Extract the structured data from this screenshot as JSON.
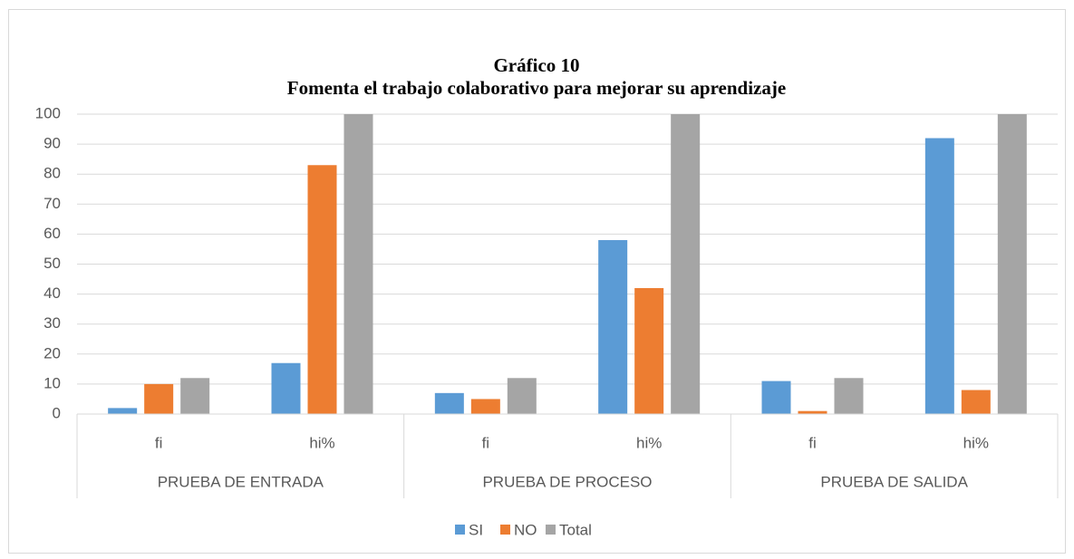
{
  "chart_data": {
    "type": "bar",
    "title": "Gráfico 10",
    "subtitle": "Fomenta el trabajo colaborativo para mejorar su aprendizaje",
    "groups": [
      "PRUEBA DE ENTRADA",
      "PRUEBA DE PROCESO",
      "PRUEBA DE SALIDA"
    ],
    "categories": [
      "fi",
      "hi%",
      "fi",
      "hi%",
      "fi",
      "hi%"
    ],
    "series": [
      {
        "name": "SI",
        "color": "#5b9bd5",
        "values": [
          2,
          17,
          7,
          58,
          11,
          92
        ]
      },
      {
        "name": "NO",
        "color": "#ed7d31",
        "values": [
          10,
          83,
          5,
          42,
          1,
          8
        ]
      },
      {
        "name": "Total",
        "color": "#a5a5a5",
        "values": [
          12,
          100,
          12,
          100,
          12,
          100
        ]
      }
    ],
    "ylim": [
      0,
      100
    ],
    "yticks": [
      0,
      10,
      20,
      30,
      40,
      50,
      60,
      70,
      80,
      90,
      100
    ],
    "grid": true,
    "legend": "bottom"
  }
}
